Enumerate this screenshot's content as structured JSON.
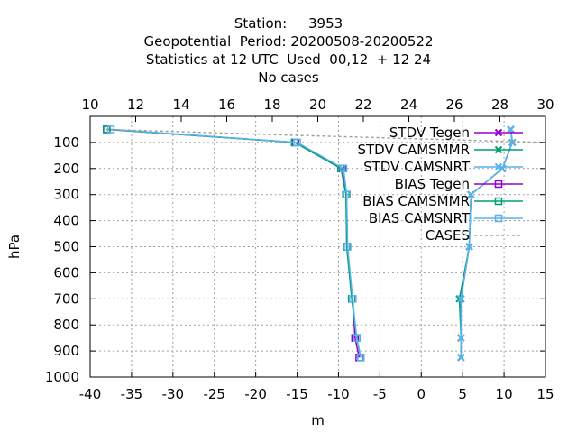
{
  "title_lines": [
    "Station:     3953",
    "Geopotential  Period: 20200508-20200522",
    "Statistics at 12 UTC  Used  00,12  + 12 24",
    "No cases"
  ],
  "chart_data": {
    "type": "line",
    "xlabel": "m",
    "ylabel": "hPa",
    "xlim": [
      -40,
      15
    ],
    "x_ticks": [
      -40,
      -35,
      -30,
      -25,
      -20,
      -15,
      -10,
      -5,
      0,
      5,
      10,
      15
    ],
    "x2lim": [
      10,
      30
    ],
    "x2_ticks": [
      10,
      12,
      14,
      16,
      18,
      20,
      22,
      24,
      26,
      28,
      30
    ],
    "ylim": [
      1000,
      0
    ],
    "y_ticks": [
      100,
      200,
      300,
      400,
      500,
      600,
      700,
      800,
      900,
      1000
    ],
    "y_reversed": true,
    "grid": true,
    "legend_position": "top-right",
    "series": [
      {
        "name": "STDV Tegen",
        "color": "#9400d3",
        "marker": "x",
        "x": [
          10.8,
          11.0,
          9.8,
          6.0,
          5.8,
          4.8,
          4.8,
          4.8
        ],
        "y": [
          50,
          100,
          200,
          300,
          500,
          700,
          850,
          925
        ]
      },
      {
        "name": "STDV CAMSMMR",
        "color": "#009e73",
        "marker": "x",
        "x": [
          10.8,
          11.0,
          9.8,
          6.0,
          5.8,
          4.6,
          4.8,
          4.8
        ],
        "y": [
          50,
          100,
          200,
          300,
          500,
          700,
          850,
          925
        ]
      },
      {
        "name": "STDV CAMSNRT",
        "color": "#56b4e9",
        "marker": "x",
        "x": [
          10.8,
          11.0,
          9.8,
          6.0,
          5.8,
          4.8,
          4.8,
          4.8
        ],
        "y": [
          50,
          100,
          200,
          300,
          500,
          700,
          850,
          925
        ]
      },
      {
        "name": "BIAS Tegen",
        "color": "#9400d3",
        "marker": "square",
        "x": [
          -38.0,
          -15.2,
          -9.5,
          -9.0,
          -9.0,
          -8.3,
          -8.0,
          -7.5
        ],
        "y": [
          50,
          100,
          200,
          300,
          500,
          700,
          850,
          925
        ]
      },
      {
        "name": "BIAS CAMSMMR",
        "color": "#009e73",
        "marker": "square",
        "x": [
          -38.0,
          -15.3,
          -9.7,
          -9.1,
          -9.0,
          -8.4,
          -7.8,
          -7.3
        ],
        "y": [
          50,
          100,
          200,
          300,
          500,
          700,
          850,
          925
        ]
      },
      {
        "name": "BIAS CAMSNRT",
        "color": "#56b4e9",
        "marker": "square",
        "x": [
          -37.5,
          -15.0,
          -9.4,
          -9.0,
          -8.9,
          -8.3,
          -7.8,
          -7.3
        ],
        "y": [
          50,
          100,
          200,
          300,
          500,
          700,
          850,
          925
        ]
      },
      {
        "name": "CASES",
        "color": "#a0a0a0",
        "marker": "none",
        "dashed": true,
        "axis": "x2",
        "x": [
          10.7,
          18.0,
          22.0,
          30.0
        ],
        "y": [
          50,
          70,
          80,
          100
        ]
      }
    ]
  }
}
